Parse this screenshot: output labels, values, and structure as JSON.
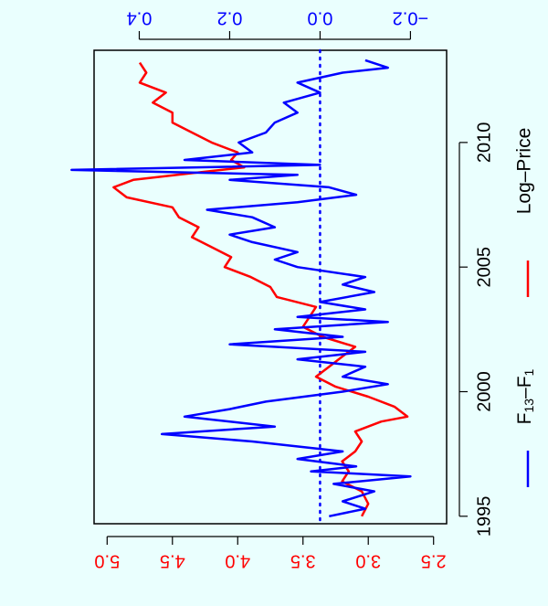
{
  "chart_data": {
    "type": "line",
    "orientation": "rotated-90-clockwise",
    "x": {
      "ticks": [
        "1995",
        "2000",
        "2005",
        "2010"
      ],
      "tick_values": [
        1995,
        2000,
        2005,
        2010
      ],
      "range": [
        1994.7,
        2013.7
      ]
    },
    "y_left": {
      "ticks": [
        "2.5",
        "3.0",
        "3.5",
        "4.0",
        "4.5",
        "5.0"
      ],
      "tick_values": [
        2.5,
        3.0,
        3.5,
        4.0,
        4.5,
        5.0
      ],
      "range": [
        2.4,
        5.1
      ],
      "color": "#ff0000"
    },
    "y_right": {
      "ticks": [
        "−0.2",
        "0.0",
        "0.2",
        "0.4"
      ],
      "tick_values": [
        -0.2,
        0.0,
        0.2,
        0.4
      ],
      "range": [
        -0.28,
        0.5
      ],
      "color": "#0000ff"
    },
    "reference_line": {
      "axis": "right",
      "value": 0.0,
      "style": "dotted",
      "color": "#0000ff"
    },
    "series": [
      {
        "name": "Log–Price",
        "axis": "left",
        "color": "#ff0000",
        "x": [
          1995.0,
          1995.5,
          1996.0,
          1996.4,
          1996.8,
          1997.2,
          1997.6,
          1998.0,
          1998.4,
          1998.8,
          1999.0,
          1999.4,
          1999.8,
          2000.2,
          2000.6,
          2001.0,
          2001.4,
          2001.8,
          2002.2,
          2002.6,
          2003.0,
          2003.4,
          2003.8,
          2004.2,
          2004.6,
          2005.0,
          2005.4,
          2005.8,
          2006.2,
          2006.6,
          2007.0,
          2007.4,
          2007.8,
          2008.2,
          2008.5,
          2008.8,
          2009.0,
          2009.3,
          2009.6,
          2010.0,
          2010.4,
          2010.8,
          2011.2,
          2011.6,
          2012.0,
          2012.4,
          2012.8,
          2013.2
        ],
        "y": [
          3.05,
          3.0,
          3.05,
          3.2,
          3.15,
          3.2,
          3.1,
          3.05,
          3.1,
          2.9,
          2.7,
          2.8,
          3.0,
          3.25,
          3.4,
          3.3,
          3.2,
          3.1,
          3.35,
          3.5,
          3.45,
          3.4,
          3.7,
          3.75,
          3.9,
          4.1,
          4.05,
          4.2,
          4.35,
          4.3,
          4.45,
          4.5,
          4.85,
          4.95,
          4.8,
          4.3,
          3.95,
          4.05,
          4.0,
          4.2,
          4.35,
          4.5,
          4.5,
          4.65,
          4.55,
          4.75,
          4.7,
          4.75
        ]
      },
      {
        "name": "F13–F1",
        "axis": "right",
        "color": "#0000ff",
        "x": [
          1995.0,
          1995.3,
          1995.6,
          1996.0,
          1996.3,
          1996.6,
          1996.8,
          1997.0,
          1997.3,
          1997.6,
          1998.0,
          1998.3,
          1998.6,
          1999.0,
          1999.3,
          1999.6,
          2000.0,
          2000.3,
          2000.6,
          2001.0,
          2001.3,
          2001.6,
          2001.9,
          2002.2,
          2002.5,
          2002.8,
          2003.0,
          2003.3,
          2003.6,
          2004.0,
          2004.3,
          2004.6,
          2005.0,
          2005.3,
          2005.6,
          2006.0,
          2006.3,
          2006.6,
          2007.0,
          2007.3,
          2007.6,
          2007.9,
          2008.2,
          2008.5,
          2008.7,
          2008.9,
          2009.1,
          2009.3,
          2009.6,
          2010.0,
          2010.4,
          2010.8,
          2011.2,
          2011.6,
          2012.0,
          2012.4,
          2012.8,
          2013.0,
          2013.3
        ],
        "y": [
          -0.02,
          -0.1,
          -0.05,
          -0.12,
          -0.03,
          -0.2,
          0.02,
          -0.08,
          0.05,
          -0.05,
          0.15,
          0.35,
          0.1,
          0.3,
          0.2,
          0.12,
          -0.05,
          -0.15,
          -0.05,
          -0.1,
          0.05,
          -0.1,
          0.2,
          -0.05,
          0.1,
          -0.15,
          0.05,
          -0.1,
          0.0,
          -0.12,
          -0.05,
          -0.1,
          0.05,
          0.1,
          0.05,
          0.15,
          0.2,
          0.1,
          0.15,
          0.25,
          0.05,
          -0.08,
          -0.02,
          0.2,
          0.05,
          0.55,
          0.0,
          0.3,
          0.15,
          0.18,
          0.12,
          0.1,
          0.05,
          0.08,
          0.0,
          0.05,
          -0.05,
          -0.15,
          -0.1
        ]
      }
    ],
    "legend": [
      {
        "label_main": "F",
        "sub1": "13",
        "mid": "–F",
        "sub2": "1",
        "color": "#0000ff"
      },
      {
        "label_main": "Log–Price",
        "color": "#ff0000"
      }
    ],
    "grid": false
  }
}
